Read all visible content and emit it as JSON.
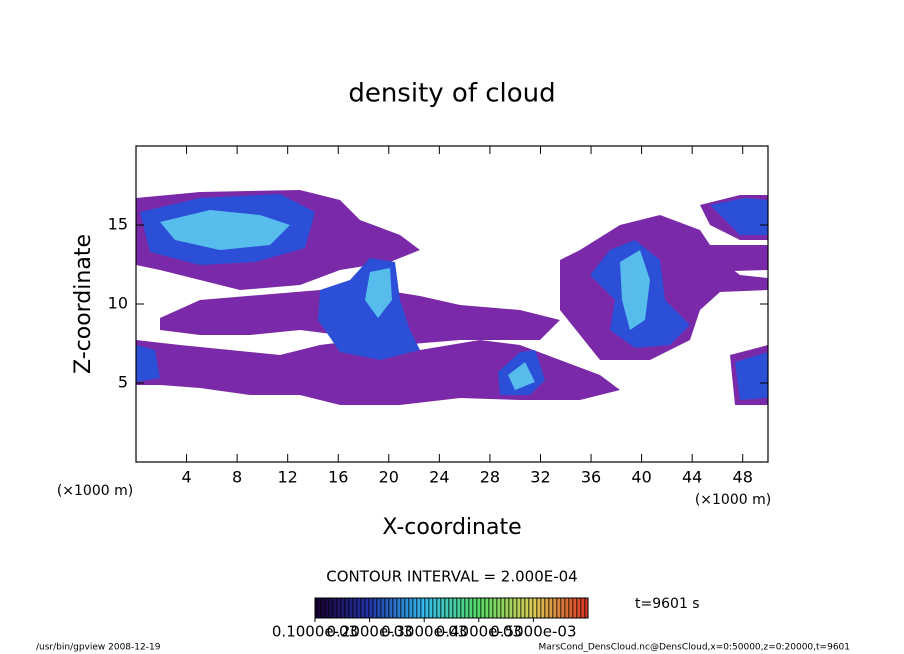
{
  "chart_data": {
    "type": "contour",
    "title": "density of cloud",
    "x_label": "X-coordinate",
    "y_label": "Z-coordinate",
    "x_unit": "(×1000 m)",
    "y_unit": "(×1000 m)",
    "xlim": [
      0,
      50
    ],
    "xticks": [
      4,
      8,
      12,
      16,
      20,
      24,
      28,
      32,
      36,
      40,
      44,
      48
    ],
    "ylim": [
      0,
      20
    ],
    "yticks": [
      5,
      10,
      15
    ],
    "contour_interval": "CONTOUR INTERVAL = 2.000E-04",
    "time_label": "t=9601 s",
    "colorbar_ticks": [
      {
        "value": 0.0001,
        "label": "0.1000e-03"
      },
      {
        "value": 0.0002,
        "label": "0.2000e-03"
      },
      {
        "value": 0.0003,
        "label": "0.3000e-03"
      },
      {
        "value": 0.0004,
        "label": "0.4000e-03"
      },
      {
        "value": 0.0005,
        "label": "0.5000e-03"
      }
    ],
    "colorbar_lim": [
      0.0001,
      0.0006
    ],
    "footer_left": "/usr/bin/gpview  2008-12-19",
    "footer_right": "MarsCond_DensCloud.nc@DensCloud,x=0:50000,z=0:20000,t=9601"
  }
}
